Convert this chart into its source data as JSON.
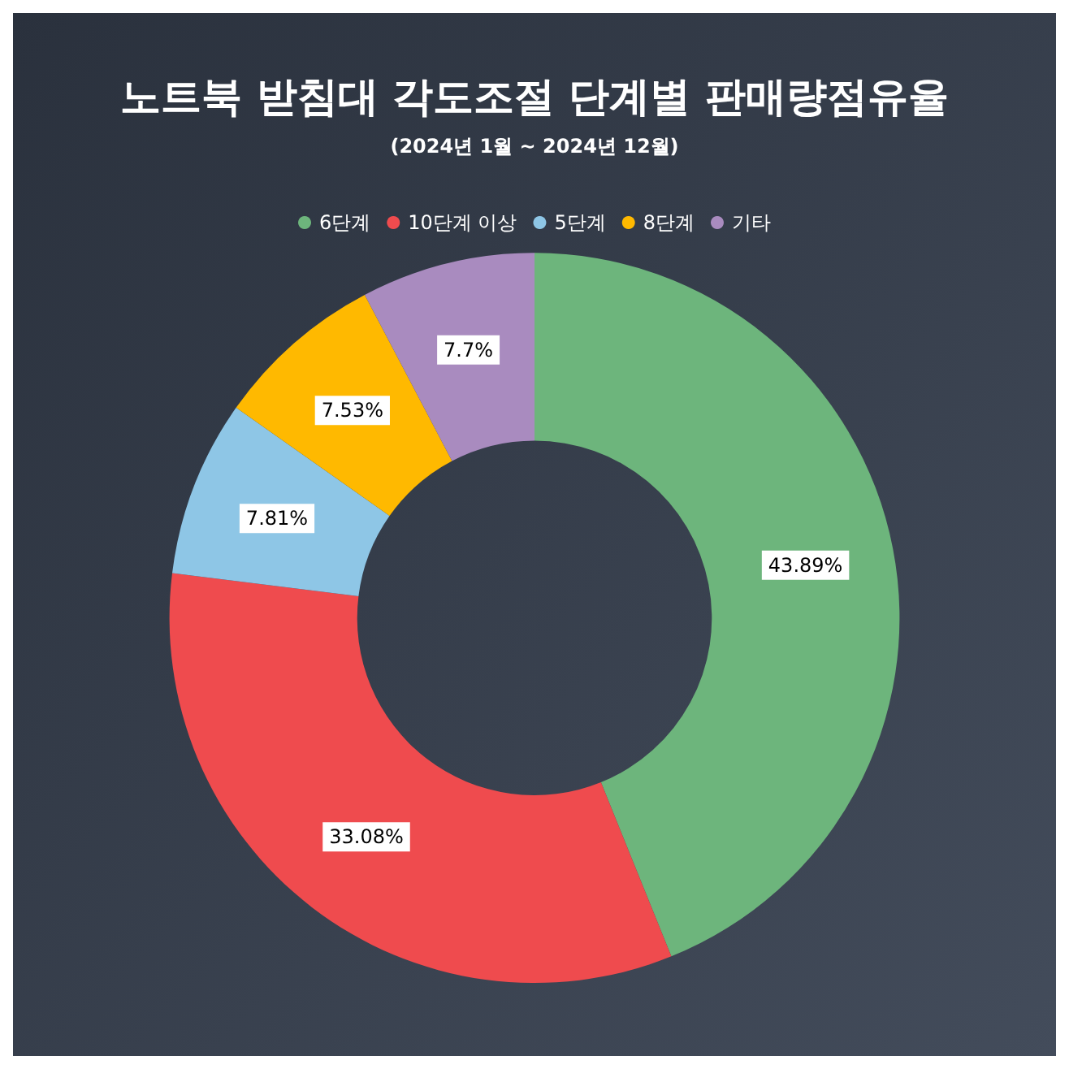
{
  "chart_data": {
    "type": "donut",
    "title": "노트북 받침대 각도조절 단계별 판매량점유율",
    "subtitle": "(2024년 1월 ~ 2024년 12월)",
    "categories": [
      "6단계",
      "10단계 이상",
      "5단계",
      "8단계",
      "기타"
    ],
    "values": [
      43.89,
      33.08,
      7.81,
      7.53,
      7.7
    ],
    "colors": [
      "#6db57c",
      "#ef4b4e",
      "#8ec6e6",
      "#ffb900",
      "#a98bbf"
    ],
    "value_labels": [
      "43.89%",
      "33.08%",
      "7.81%",
      "7.53%",
      "7.7%"
    ],
    "legend": "top"
  }
}
